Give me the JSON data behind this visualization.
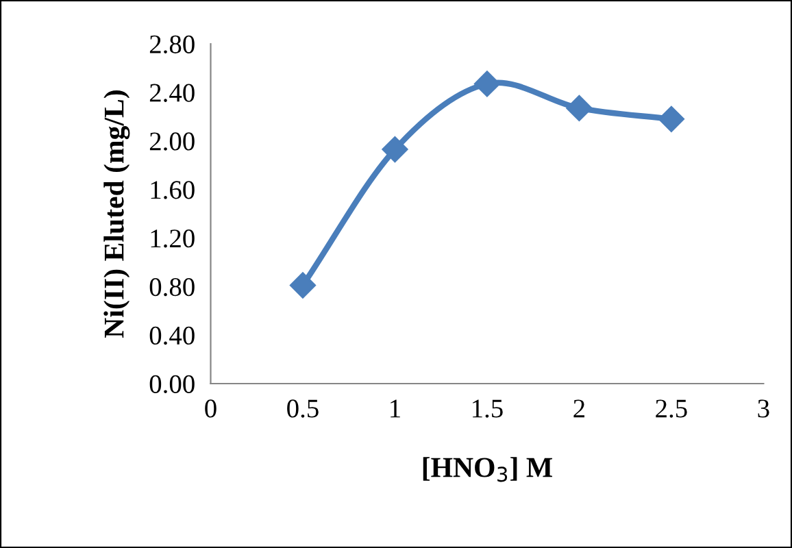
{
  "chart_data": {
    "type": "line",
    "xlabel": "[HNO$_{3}$] M",
    "ylabel": "Ni(II) Eluted (mg/L)",
    "x": [
      0.5,
      1,
      1.5,
      2,
      2.5
    ],
    "series": [
      {
        "color": "#4a7ebb",
        "values": [
          0.81,
          1.93,
          2.47,
          2.27,
          2.18
        ]
      }
    ],
    "marker": "diamond",
    "line_style": "solid",
    "grid": false,
    "legend": false,
    "xlim": [
      0,
      3
    ],
    "xticks": [
      0,
      0.5,
      1,
      1.5,
      2,
      2.5,
      3
    ],
    "ylim": [
      0,
      2.8
    ],
    "yticks": [
      {
        "value": 0,
        "label": "0.00"
      },
      {
        "value": 0.4,
        "label": "0.40"
      },
      {
        "value": 0.8,
        "label": "0.80"
      },
      {
        "value": 1.2,
        "label": "1.20"
      },
      {
        "value": 1.6,
        "label": "1.60"
      },
      {
        "value": 2.0,
        "label": "2.00"
      },
      {
        "value": 2.4,
        "label": "2.40"
      },
      {
        "value": 2.8,
        "label": "2.80"
      }
    ]
  }
}
